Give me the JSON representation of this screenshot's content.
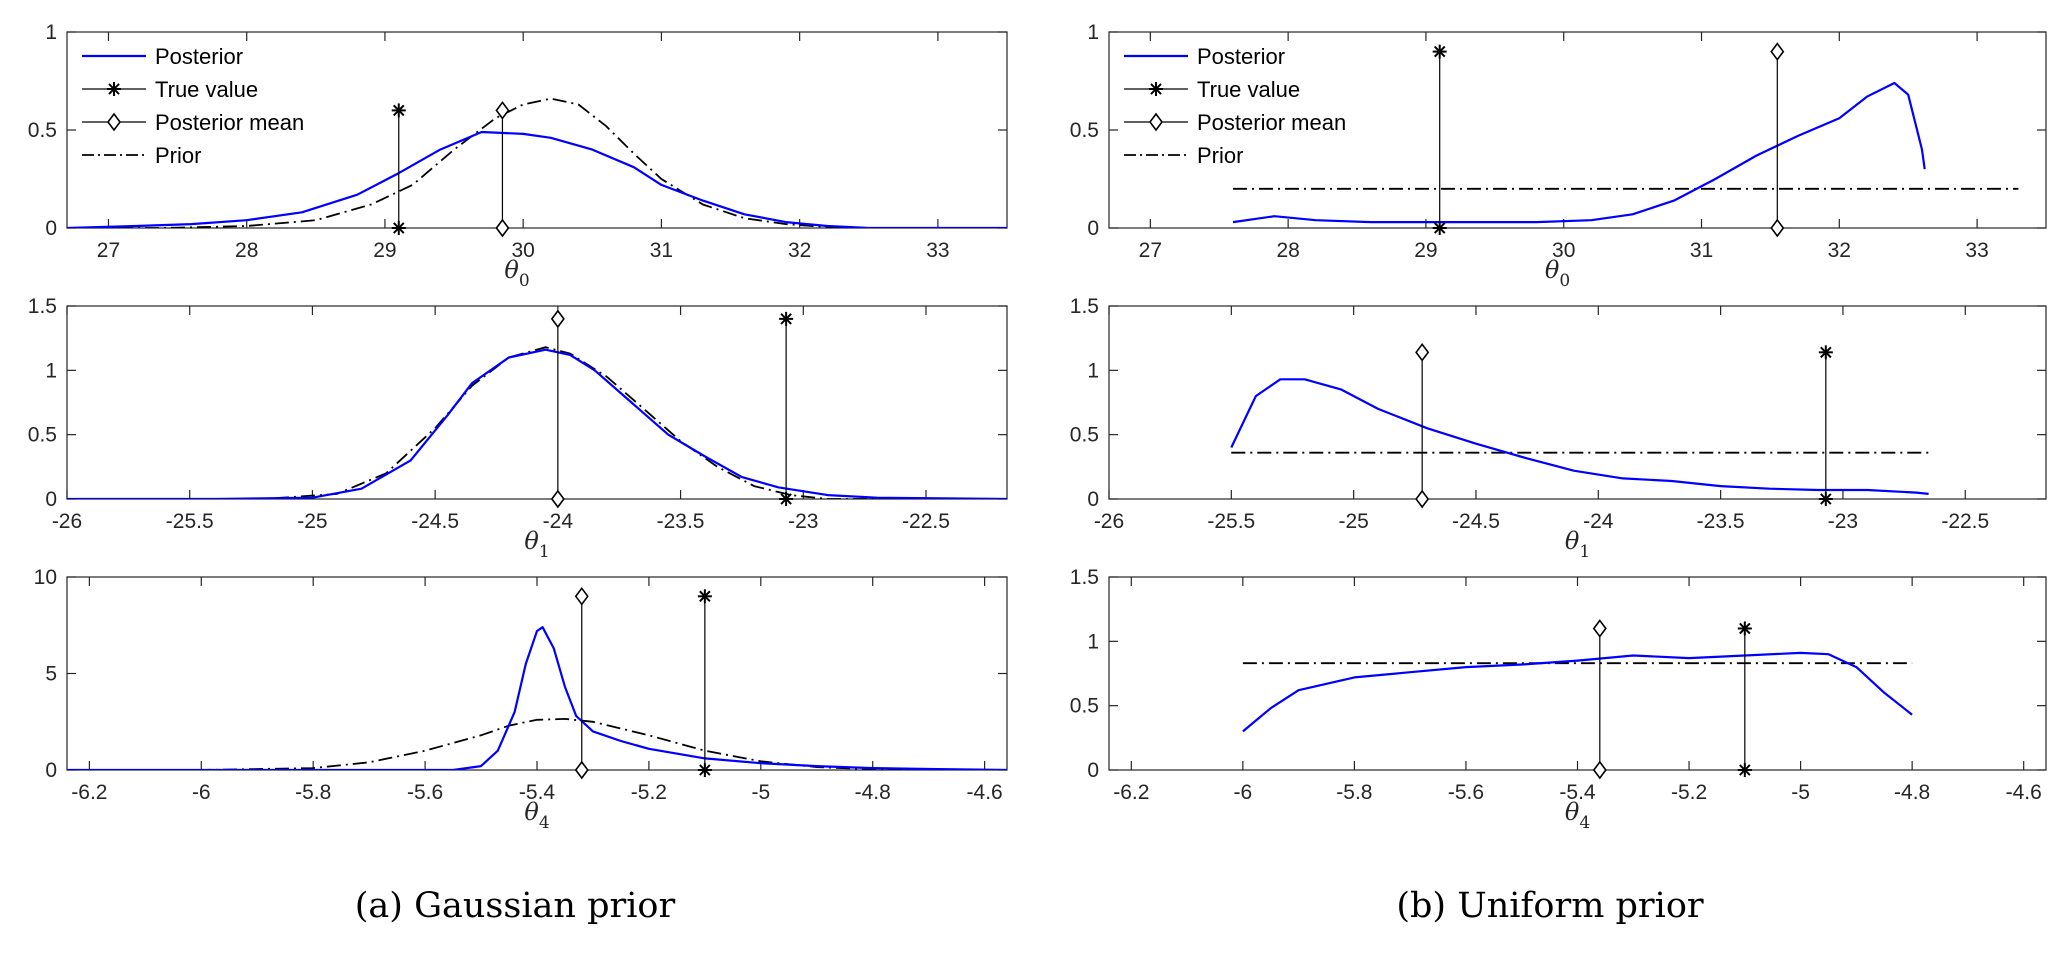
{
  "legend": {
    "posterior": "Posterior",
    "true_value": "True value",
    "posterior_mean": "Posterior mean",
    "prior": "Prior"
  },
  "colors": {
    "posterior": "#0000ff",
    "black": "#000000",
    "axis": "#262626"
  },
  "captions": {
    "left": "(a) Gaussian prior",
    "right": "(b) Uniform prior"
  },
  "chart_data": [
    {
      "id": "a1",
      "type": "line",
      "panel": "Gaussian prior",
      "legend": true,
      "xlabel": "θ",
      "xlabel_sub": "0",
      "xlim": [
        26.7,
        33.5
      ],
      "ylim": [
        0,
        1
      ],
      "xticks": [
        27,
        28,
        29,
        30,
        31,
        32,
        33
      ],
      "xtick_labels": [
        "27",
        "28",
        "29",
        "30",
        "31",
        "32",
        "33"
      ],
      "yticks": [
        0,
        0.5,
        1
      ],
      "ytick_labels": [
        "0",
        "0.5",
        "1"
      ],
      "posterior": [
        [
          26.7,
          0
        ],
        [
          27.2,
          0.01
        ],
        [
          27.6,
          0.02
        ],
        [
          28.0,
          0.04
        ],
        [
          28.4,
          0.08
        ],
        [
          28.8,
          0.17
        ],
        [
          29.1,
          0.28
        ],
        [
          29.4,
          0.4
        ],
        [
          29.7,
          0.49
        ],
        [
          30.0,
          0.48
        ],
        [
          30.2,
          0.46
        ],
        [
          30.5,
          0.4
        ],
        [
          30.8,
          0.31
        ],
        [
          31.0,
          0.22
        ],
        [
          31.3,
          0.14
        ],
        [
          31.6,
          0.07
        ],
        [
          31.9,
          0.03
        ],
        [
          32.2,
          0.01
        ],
        [
          32.5,
          0
        ],
        [
          33.5,
          0
        ]
      ],
      "prior": [
        [
          26.7,
          0
        ],
        [
          27.4,
          0
        ],
        [
          28.0,
          0.01
        ],
        [
          28.5,
          0.04
        ],
        [
          28.9,
          0.12
        ],
        [
          29.2,
          0.22
        ],
        [
          29.5,
          0.4
        ],
        [
          29.8,
          0.56
        ],
        [
          30.0,
          0.63
        ],
        [
          30.2,
          0.66
        ],
        [
          30.4,
          0.63
        ],
        [
          30.6,
          0.52
        ],
        [
          30.8,
          0.38
        ],
        [
          31.0,
          0.25
        ],
        [
          31.3,
          0.12
        ],
        [
          31.6,
          0.05
        ],
        [
          31.9,
          0.02
        ],
        [
          32.3,
          0
        ],
        [
          33.5,
          0
        ]
      ],
      "true_value": {
        "x": 29.1,
        "top": 0.6
      },
      "posterior_mean": {
        "x": 29.85,
        "top": 0.6
      }
    },
    {
      "id": "a2",
      "type": "line",
      "panel": "Gaussian prior",
      "legend": false,
      "xlabel": "θ",
      "xlabel_sub": "1",
      "xlim": [
        -26,
        -22.17
      ],
      "ylim": [
        0,
        1.5
      ],
      "xticks": [
        -26,
        -25.5,
        -25,
        -24.5,
        -24,
        -23.5,
        -23,
        -22.5
      ],
      "xtick_labels": [
        "-26",
        "-25.5",
        "-25",
        "-24.5",
        "-24",
        "-23.5",
        "-23",
        "-22.5"
      ],
      "yticks": [
        0,
        0.5,
        1,
        1.5
      ],
      "ytick_labels": [
        "0",
        "0.5",
        "1",
        "1.5"
      ],
      "posterior": [
        [
          -26,
          0
        ],
        [
          -25.4,
          0
        ],
        [
          -25.0,
          0.01
        ],
        [
          -24.8,
          0.08
        ],
        [
          -24.6,
          0.3
        ],
        [
          -24.45,
          0.65
        ],
        [
          -24.35,
          0.9
        ],
        [
          -24.2,
          1.1
        ],
        [
          -24.05,
          1.16
        ],
        [
          -23.95,
          1.12
        ],
        [
          -23.85,
          1.0
        ],
        [
          -23.7,
          0.75
        ],
        [
          -23.55,
          0.5
        ],
        [
          -23.4,
          0.33
        ],
        [
          -23.25,
          0.17
        ],
        [
          -23.1,
          0.09
        ],
        [
          -22.9,
          0.03
        ],
        [
          -22.7,
          0.01
        ],
        [
          -22.17,
          0
        ]
      ],
      "prior": [
        [
          -26,
          0
        ],
        [
          -25.2,
          0
        ],
        [
          -24.9,
          0.04
        ],
        [
          -24.7,
          0.2
        ],
        [
          -24.5,
          0.55
        ],
        [
          -24.35,
          0.88
        ],
        [
          -24.2,
          1.1
        ],
        [
          -24.05,
          1.18
        ],
        [
          -23.95,
          1.13
        ],
        [
          -23.8,
          0.95
        ],
        [
          -23.65,
          0.7
        ],
        [
          -23.5,
          0.45
        ],
        [
          -23.35,
          0.25
        ],
        [
          -23.2,
          0.1
        ],
        [
          -23.05,
          0.03
        ],
        [
          -22.9,
          0
        ],
        [
          -22.17,
          0
        ]
      ],
      "true_value": {
        "x": -23.07,
        "top": 1.4
      },
      "posterior_mean": {
        "x": -24.0,
        "top": 1.4
      }
    },
    {
      "id": "a3",
      "type": "line",
      "panel": "Gaussian prior",
      "legend": false,
      "xlabel": "θ",
      "xlabel_sub": "4",
      "xlim": [
        -6.24,
        -4.56
      ],
      "ylim": [
        0,
        10
      ],
      "xticks": [
        -6.2,
        -6.0,
        -5.8,
        -5.6,
        -5.4,
        -5.2,
        -5.0,
        -4.8,
        -4.6
      ],
      "xtick_labels": [
        "-6.2",
        "-6",
        "-5.8",
        "-5.6",
        "-5.4",
        "-5.2",
        "-5",
        "-4.8",
        "-4.6"
      ],
      "yticks": [
        0,
        5,
        10
      ],
      "ytick_labels": [
        "0",
        "5",
        "10"
      ],
      "posterior": [
        [
          -6.24,
          0
        ],
        [
          -5.55,
          0
        ],
        [
          -5.5,
          0.2
        ],
        [
          -5.47,
          1.0
        ],
        [
          -5.44,
          3.0
        ],
        [
          -5.42,
          5.5
        ],
        [
          -5.4,
          7.2
        ],
        [
          -5.39,
          7.4
        ],
        [
          -5.37,
          6.3
        ],
        [
          -5.35,
          4.3
        ],
        [
          -5.33,
          2.8
        ],
        [
          -5.3,
          2.0
        ],
        [
          -5.25,
          1.5
        ],
        [
          -5.2,
          1.1
        ],
        [
          -5.1,
          0.6
        ],
        [
          -5.0,
          0.35
        ],
        [
          -4.9,
          0.2
        ],
        [
          -4.8,
          0.1
        ],
        [
          -4.7,
          0.05
        ],
        [
          -4.56,
          0
        ]
      ],
      "prior": [
        [
          -6.24,
          0
        ],
        [
          -6.0,
          0
        ],
        [
          -5.8,
          0.1
        ],
        [
          -5.7,
          0.4
        ],
        [
          -5.6,
          1.0
        ],
        [
          -5.5,
          1.8
        ],
        [
          -5.45,
          2.3
        ],
        [
          -5.4,
          2.6
        ],
        [
          -5.35,
          2.65
        ],
        [
          -5.3,
          2.5
        ],
        [
          -5.2,
          1.8
        ],
        [
          -5.1,
          1.0
        ],
        [
          -5.0,
          0.45
        ],
        [
          -4.9,
          0.15
        ],
        [
          -4.8,
          0.04
        ],
        [
          -4.56,
          0
        ]
      ],
      "true_value": {
        "x": -5.1,
        "top": 9.0
      },
      "posterior_mean": {
        "x": -5.32,
        "top": 9.0
      }
    },
    {
      "id": "b1",
      "type": "line",
      "panel": "Uniform prior",
      "legend": true,
      "xlabel": "θ",
      "xlabel_sub": "0",
      "xlim": [
        26.7,
        33.5
      ],
      "ylim": [
        0,
        1
      ],
      "xticks": [
        27,
        28,
        29,
        30,
        31,
        32,
        33
      ],
      "xtick_labels": [
        "27",
        "28",
        "29",
        "30",
        "31",
        "32",
        "33"
      ],
      "yticks": [
        0,
        0.5,
        1
      ],
      "ytick_labels": [
        "0",
        "0.5",
        "1"
      ],
      "posterior": [
        [
          27.6,
          0.03
        ],
        [
          27.9,
          0.06
        ],
        [
          28.2,
          0.04
        ],
        [
          28.6,
          0.03
        ],
        [
          29.0,
          0.03
        ],
        [
          29.4,
          0.03
        ],
        [
          29.8,
          0.03
        ],
        [
          30.2,
          0.04
        ],
        [
          30.5,
          0.07
        ],
        [
          30.8,
          0.14
        ],
        [
          31.1,
          0.25
        ],
        [
          31.4,
          0.37
        ],
        [
          31.7,
          0.47
        ],
        [
          32.0,
          0.56
        ],
        [
          32.2,
          0.67
        ],
        [
          32.4,
          0.74
        ],
        [
          32.5,
          0.68
        ],
        [
          32.6,
          0.4
        ],
        [
          32.62,
          0.3
        ]
      ],
      "prior": [
        [
          27.6,
          0.2
        ],
        [
          33.3,
          0.2
        ]
      ],
      "true_value": {
        "x": 29.1,
        "top": 0.9
      },
      "posterior_mean": {
        "x": 31.55,
        "top": 0.9
      }
    },
    {
      "id": "b2",
      "type": "line",
      "panel": "Uniform prior",
      "legend": false,
      "xlabel": "θ",
      "xlabel_sub": "1",
      "xlim": [
        -26,
        -22.17
      ],
      "ylim": [
        0,
        1.5
      ],
      "xticks": [
        -26,
        -25.5,
        -25,
        -24.5,
        -24,
        -23.5,
        -23,
        -22.5
      ],
      "xtick_labels": [
        "-26",
        "-25.5",
        "-25",
        "-24.5",
        "-24",
        "-23.5",
        "-23",
        "-22.5"
      ],
      "yticks": [
        0,
        0.5,
        1,
        1.5
      ],
      "ytick_labels": [
        "0",
        "0.5",
        "1",
        "1.5"
      ],
      "posterior": [
        [
          -25.5,
          0.4
        ],
        [
          -25.4,
          0.8
        ],
        [
          -25.3,
          0.93
        ],
        [
          -25.2,
          0.93
        ],
        [
          -25.05,
          0.85
        ],
        [
          -24.9,
          0.7
        ],
        [
          -24.7,
          0.55
        ],
        [
          -24.5,
          0.43
        ],
        [
          -24.3,
          0.32
        ],
        [
          -24.1,
          0.22
        ],
        [
          -23.9,
          0.16
        ],
        [
          -23.7,
          0.14
        ],
        [
          -23.5,
          0.1
        ],
        [
          -23.3,
          0.08
        ],
        [
          -23.1,
          0.07
        ],
        [
          -22.9,
          0.07
        ],
        [
          -22.7,
          0.05
        ],
        [
          -22.65,
          0.04
        ]
      ],
      "prior": [
        [
          -25.5,
          0.36
        ],
        [
          -22.65,
          0.36
        ]
      ],
      "true_value": {
        "x": -23.07,
        "top": 1.14
      },
      "posterior_mean": {
        "x": -24.72,
        "top": 1.14
      }
    },
    {
      "id": "b3",
      "type": "line",
      "panel": "Uniform prior",
      "legend": false,
      "xlabel": "θ",
      "xlabel_sub": "4",
      "xlim": [
        -6.24,
        -4.56
      ],
      "ylim": [
        0,
        1.5
      ],
      "xticks": [
        -6.2,
        -6.0,
        -5.8,
        -5.6,
        -5.4,
        -5.2,
        -5.0,
        -4.8,
        -4.6
      ],
      "xtick_labels": [
        "-6.2",
        "-6",
        "-5.8",
        "-5.6",
        "-5.4",
        "-5.2",
        "-5",
        "-4.8",
        "-4.6"
      ],
      "yticks": [
        0,
        0.5,
        1,
        1.5
      ],
      "ytick_labels": [
        "0",
        "0.5",
        "1",
        "1.5"
      ],
      "posterior": [
        [
          -6.0,
          0.3
        ],
        [
          -5.95,
          0.48
        ],
        [
          -5.9,
          0.62
        ],
        [
          -5.8,
          0.72
        ],
        [
          -5.7,
          0.76
        ],
        [
          -5.6,
          0.8
        ],
        [
          -5.5,
          0.82
        ],
        [
          -5.4,
          0.85
        ],
        [
          -5.3,
          0.89
        ],
        [
          -5.2,
          0.87
        ],
        [
          -5.1,
          0.89
        ],
        [
          -5.0,
          0.91
        ],
        [
          -4.95,
          0.9
        ],
        [
          -4.9,
          0.8
        ],
        [
          -4.85,
          0.6
        ],
        [
          -4.8,
          0.43
        ]
      ],
      "prior": [
        [
          -6.0,
          0.83
        ],
        [
          -4.8,
          0.83
        ]
      ],
      "true_value": {
        "x": -5.1,
        "top": 1.1
      },
      "posterior_mean": {
        "x": -5.36,
        "top": 1.1
      }
    }
  ]
}
